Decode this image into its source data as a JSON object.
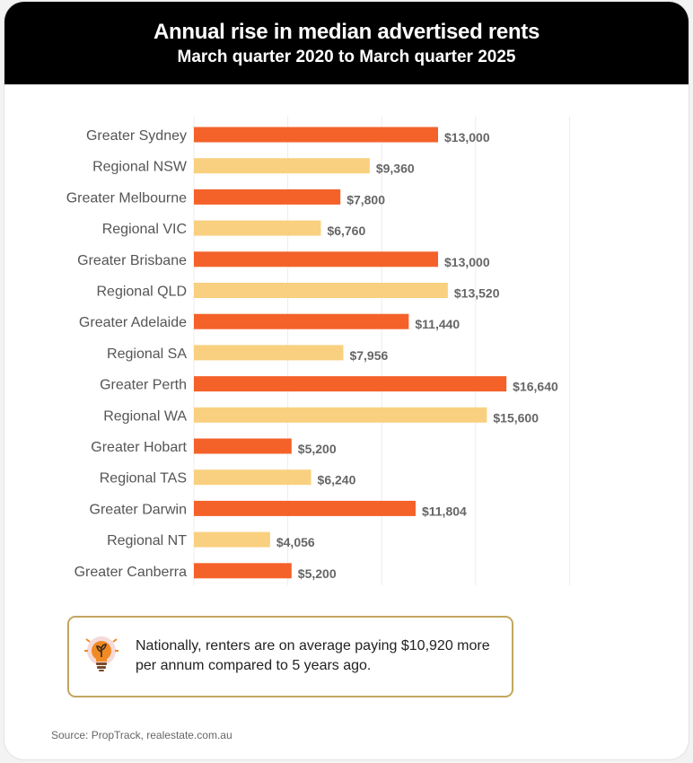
{
  "chart_data": {
    "type": "bar",
    "orientation": "horizontal",
    "title": "Annual rise in median advertised rents",
    "subtitle": "March quarter 2020 to March quarter 2025",
    "categories": [
      "Greater Sydney",
      "Regional NSW",
      "Greater Melbourne",
      "Regional VIC",
      "Greater Brisbane",
      "Regional QLD",
      "Greater Adelaide",
      "Regional SA",
      "Greater Perth",
      "Regional WA",
      "Greater Hobart",
      "Regional TAS",
      "Greater Darwin",
      "Regional NT",
      "Greater Canberra"
    ],
    "values": [
      13000,
      9360,
      7800,
      6760,
      13000,
      13520,
      11440,
      7956,
      16640,
      15600,
      5200,
      6240,
      11804,
      4056,
      5200
    ],
    "value_labels": [
      "$13,000",
      "$9,360",
      "$7,800",
      "$6,760",
      "$13,000",
      "$13,520",
      "$11,440",
      "$7,956",
      "$16,640",
      "$15,600",
      "$5,200",
      "$6,240",
      "$11,804",
      "$4,056",
      "$5,200"
    ],
    "bar_types": [
      "greater",
      "regional",
      "greater",
      "regional",
      "greater",
      "regional",
      "greater",
      "regional",
      "greater",
      "regional",
      "greater",
      "regional",
      "greater",
      "regional",
      "greater"
    ],
    "xlim": [
      0,
      20000
    ],
    "grid": true,
    "legend": "none",
    "colors": {
      "greater": "#f4622a",
      "regional": "#f9d07f",
      "gridline": "#ececec"
    }
  },
  "callout": {
    "icon": "lightbulb-icon",
    "text": "Nationally, renters are on average paying $10,920 more per annum compared to 5 years ago."
  },
  "source": "Source: PropTrack, realestate.com.au",
  "colors": {
    "header_bg": "#000000",
    "callout_border": "#c2a660"
  }
}
